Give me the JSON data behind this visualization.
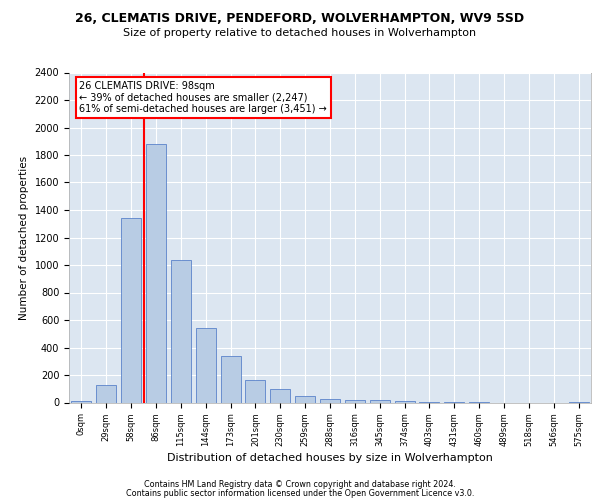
{
  "title_line1": "26, CLEMATIS DRIVE, PENDEFORD, WOLVERHAMPTON, WV9 5SD",
  "title_line2": "Size of property relative to detached houses in Wolverhampton",
  "xlabel": "Distribution of detached houses by size in Wolverhampton",
  "ylabel": "Number of detached properties",
  "footer_line1": "Contains HM Land Registry data © Crown copyright and database right 2024.",
  "footer_line2": "Contains public sector information licensed under the Open Government Licence v3.0.",
  "annotation_line1": "26 CLEMATIS DRIVE: 98sqm",
  "annotation_line2": "← 39% of detached houses are smaller (2,247)",
  "annotation_line3": "61% of semi-detached houses are larger (3,451) →",
  "bar_color": "#b8cce4",
  "bar_edge_color": "#4472c4",
  "red_line_x": 3.0,
  "categories": [
    "0sqm",
    "29sqm",
    "58sqm",
    "86sqm",
    "115sqm",
    "144sqm",
    "173sqm",
    "201sqm",
    "230sqm",
    "259sqm",
    "288sqm",
    "316sqm",
    "345sqm",
    "374sqm",
    "403sqm",
    "431sqm",
    "460sqm",
    "489sqm",
    "518sqm",
    "546sqm",
    "575sqm"
  ],
  "values": [
    10,
    130,
    1340,
    1880,
    1040,
    540,
    340,
    165,
    100,
    50,
    25,
    20,
    15,
    10,
    5,
    2,
    1,
    0,
    0,
    0,
    5
  ],
  "ylim": [
    0,
    2400
  ],
  "yticks": [
    0,
    200,
    400,
    600,
    800,
    1000,
    1200,
    1400,
    1600,
    1800,
    2000,
    2200,
    2400
  ],
  "plot_bg_color": "#dce6f1",
  "annotation_box_color": "white",
  "annotation_box_edge": "red",
  "red_line_color": "red"
}
